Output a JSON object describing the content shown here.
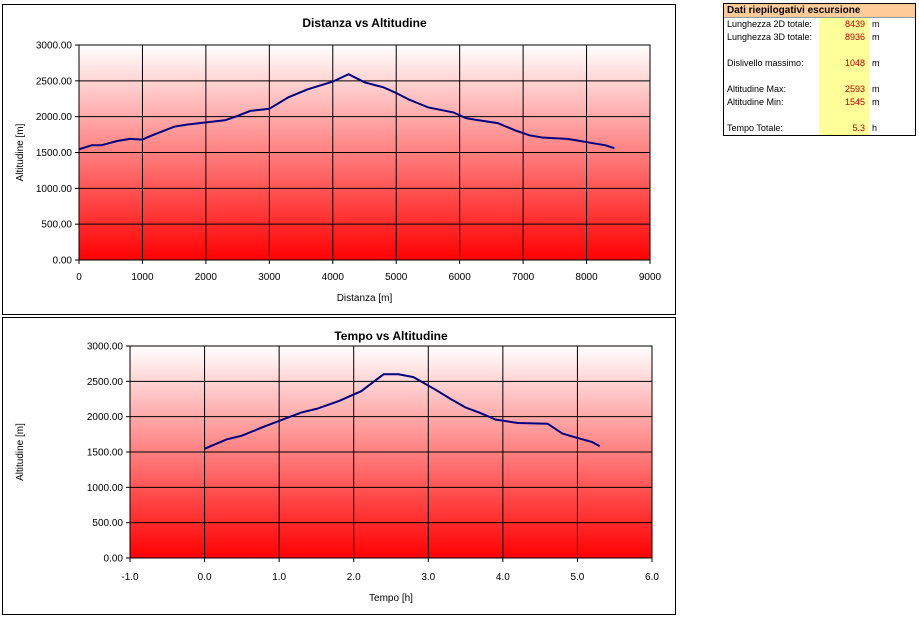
{
  "charts": [
    {
      "title": "Distanza vs Altitudine",
      "xlabel": "Distanza [m]",
      "ylabel": "Altitudine [m]",
      "xticks": [
        "0",
        "1000",
        "2000",
        "3000",
        "4000",
        "5000",
        "6000",
        "7000",
        "8000",
        "9000"
      ],
      "yticks": [
        "0.00",
        "500.00",
        "1000.00",
        "1500.00",
        "2000.00",
        "2500.00",
        "3000.00"
      ]
    },
    {
      "title": "Tempo vs Altitudine",
      "xlabel": "Tempo [h]",
      "ylabel": "Altitudine [m]",
      "xticks": [
        "-1.0",
        "0.0",
        "1.0",
        "2.0",
        "3.0",
        "4.0",
        "5.0",
        "6.0"
      ],
      "yticks": [
        "0.00",
        "500.00",
        "1000.00",
        "1500.00",
        "2000.00",
        "2500.00",
        "3000.00"
      ]
    }
  ],
  "chart_data": [
    {
      "type": "line",
      "title": "Distanza vs Altitudine",
      "xlabel": "Distanza [m]",
      "ylabel": "Altitudine [m]",
      "xlim": [
        0,
        9000
      ],
      "ylim": [
        0,
        3000
      ],
      "grid": true,
      "legend": "none",
      "colors": {
        "line": "#000080",
        "gradient_top": "#ffffff",
        "gradient_bottom": "#ff0000"
      },
      "x": [
        0,
        200,
        350,
        600,
        800,
        1000,
        1100,
        1300,
        1500,
        1700,
        2000,
        2300,
        2500,
        2700,
        3000,
        3300,
        3600,
        4000,
        4250,
        4500,
        4800,
        5000,
        5200,
        5500,
        5900,
        6100,
        6300,
        6600,
        6900,
        7100,
        7300,
        7500,
        7700,
        7900,
        8100,
        8300,
        8439
      ],
      "y": [
        1545,
        1600,
        1600,
        1660,
        1690,
        1680,
        1720,
        1790,
        1860,
        1890,
        1920,
        1950,
        2010,
        2080,
        2110,
        2270,
        2380,
        2490,
        2593,
        2480,
        2410,
        2330,
        2240,
        2130,
        2060,
        1980,
        1950,
        1910,
        1800,
        1740,
        1710,
        1700,
        1690,
        1660,
        1630,
        1600,
        1560
      ]
    },
    {
      "type": "line",
      "title": "Tempo vs Altitudine",
      "xlabel": "Tempo [h]",
      "ylabel": "Altitudine [m]",
      "xlim": [
        -1.0,
        6.0
      ],
      "ylim": [
        0,
        3000
      ],
      "grid": true,
      "legend": "none",
      "colors": {
        "line": "#000080",
        "gradient_top": "#ffffff",
        "gradient_bottom": "#ff0000"
      },
      "x": [
        0.0,
        0.1,
        0.3,
        0.5,
        0.8,
        1.1,
        1.3,
        1.5,
        1.8,
        2.1,
        2.4,
        2.6,
        2.8,
        3.1,
        3.3,
        3.5,
        3.7,
        3.9,
        4.2,
        4.6,
        4.8,
        5.0,
        5.2,
        5.3
      ],
      "y": [
        1545,
        1590,
        1680,
        1730,
        1860,
        1980,
        2060,
        2110,
        2220,
        2360,
        2600,
        2600,
        2560,
        2380,
        2250,
        2130,
        2050,
        1960,
        1910,
        1900,
        1760,
        1700,
        1640,
        1580
      ]
    }
  ],
  "summary": {
    "header": "Dati riepilogativi escursione",
    "rows": [
      {
        "label": "Lunghezza 2D totale:",
        "value": "8439",
        "unit": "m"
      },
      {
        "label": "Lunghezza 3D totale:",
        "value": "8936",
        "unit": "m"
      },
      {
        "label": "Dislivello massimo:",
        "value": "1048",
        "unit": "m"
      },
      {
        "label": "Altitudine Max:",
        "value": "2593",
        "unit": "m"
      },
      {
        "label": "Altitudine Min:",
        "value": "1545",
        "unit": "m"
      },
      {
        "label": "Tempo Totale:",
        "value": "5.3",
        "unit": "h"
      }
    ]
  }
}
